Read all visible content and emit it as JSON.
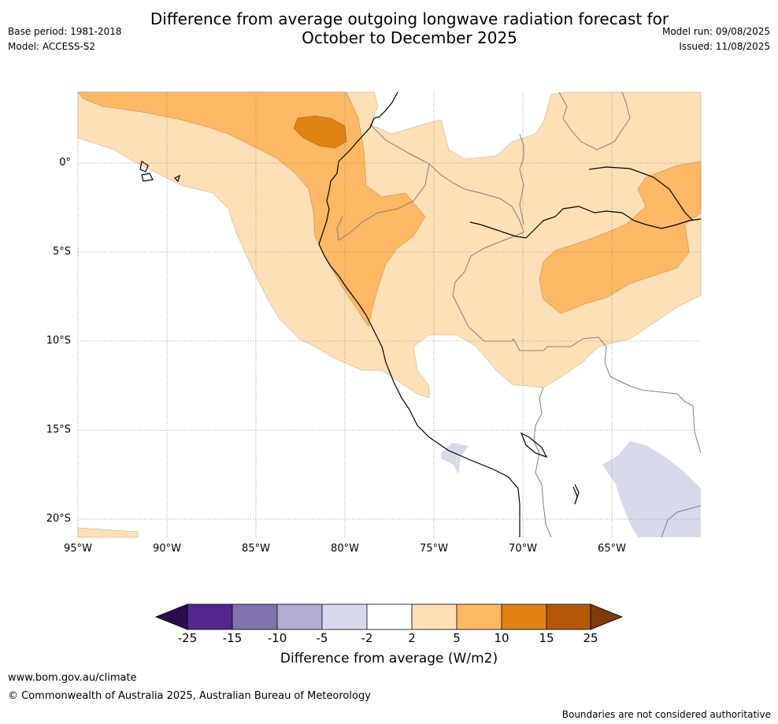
{
  "title_line1": "Difference from average outgoing longwave radiation forecast for",
  "title_line2": "October to December 2025",
  "base_period": "Base period: 1981-2018",
  "model": "Model: ACCESS-S2",
  "model_run": "Model run: 09/08/2025",
  "issued": "Issued: 11/08/2025",
  "lat_labels": [
    "0°",
    "5°S",
    "10°S",
    "15°S",
    "20°S"
  ],
  "lon_labels": [
    "95°W",
    "90°W",
    "85°W",
    "80°W",
    "75°W",
    "70°W",
    "65°W"
  ],
  "colorbar": {
    "tick_labels": [
      "-25",
      "-15",
      "-10",
      "-5",
      "-2",
      "2",
      "5",
      "10",
      "15",
      "25"
    ],
    "colors": {
      "below_min": "#2d0a4e",
      "n25_n15": "#54278f",
      "n15_n10": "#8073ac",
      "n10_n5": "#b2abd2",
      "n5_n2": "#d8daeb",
      "n2_p2": "#ffffff",
      "p2_p5": "#fee0b6",
      "p5_p10": "#fdb863",
      "p10_p15": "#e08214",
      "p15_p25": "#b35806",
      "above_max": "#7f3b08"
    },
    "label": "Difference from average (W/m2)"
  },
  "website": "www.bom.gov.au/climate",
  "copyright": "© Commonwealth of Australia 2025, Australian Bureau of Meteorology",
  "disclaimer": "Boundaries are not considered authoritative"
}
